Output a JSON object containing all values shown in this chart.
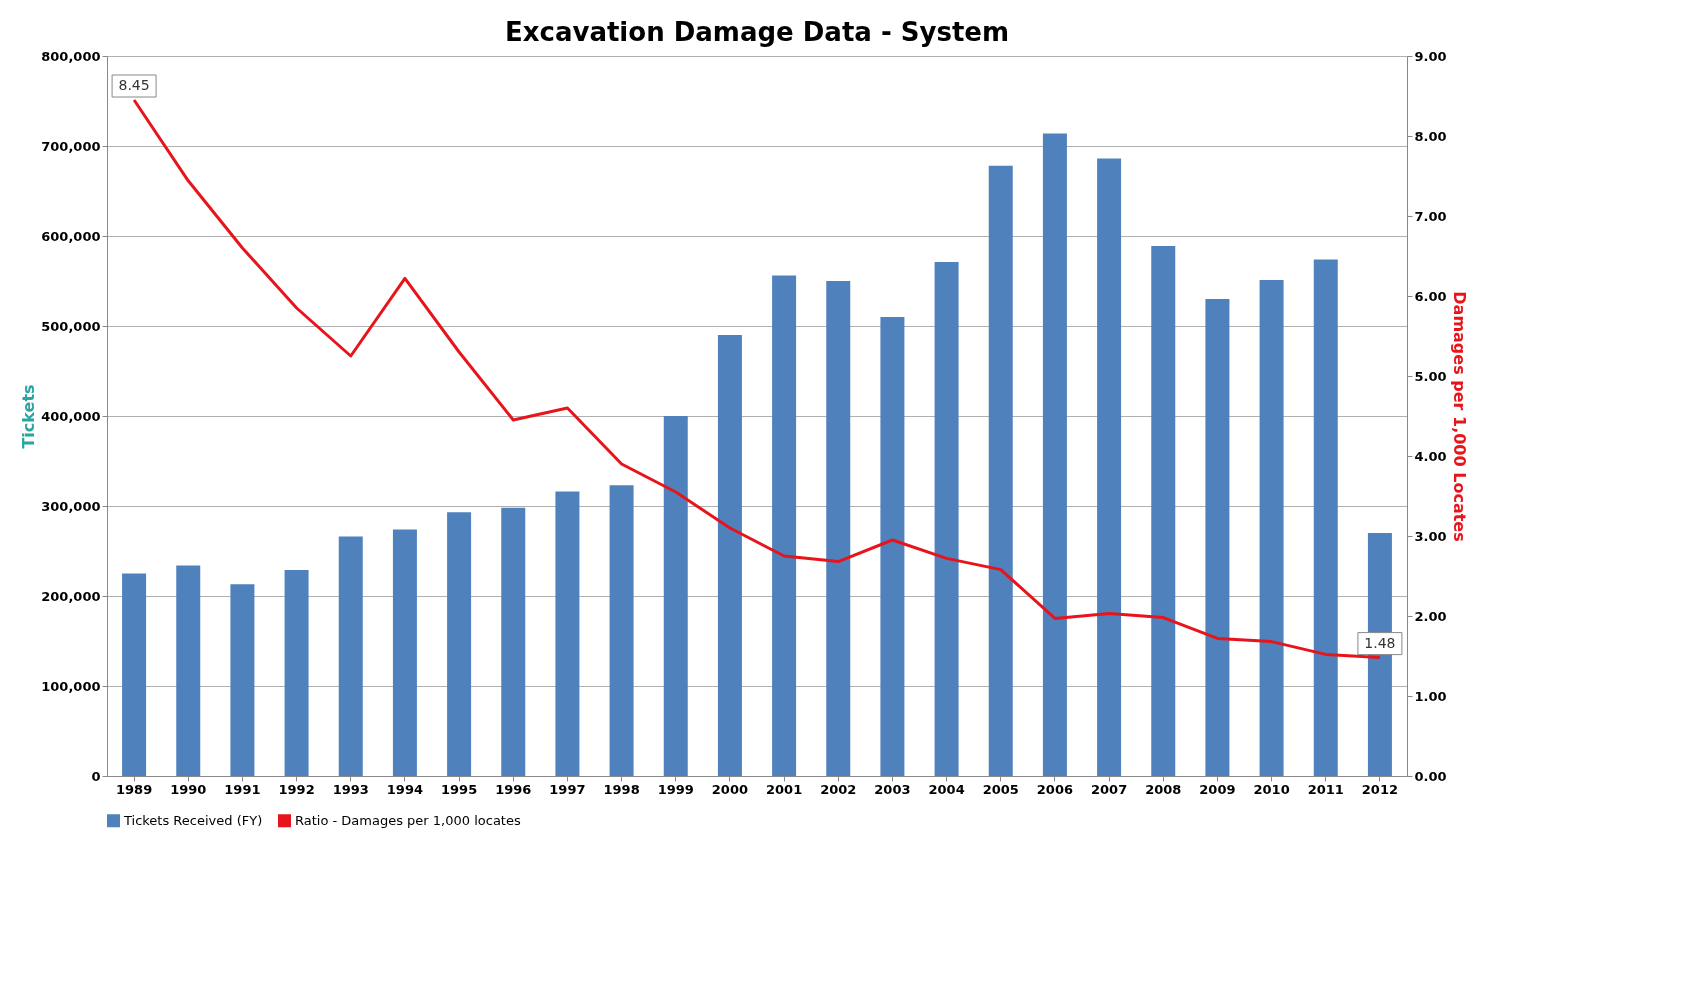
{
  "chart_data": {
    "type": "bar",
    "title": "Excavation Damage Data - System",
    "ylabel": "Tickets",
    "y2label": "Damages per 1,000 Locates",
    "categories": [
      "1989",
      "1990",
      "1991",
      "1992",
      "1993",
      "1994",
      "1995",
      "1996",
      "1997",
      "1998",
      "1999",
      "2000",
      "2001",
      "2002",
      "2003",
      "2004",
      "2005",
      "2006",
      "2007",
      "2008",
      "2009",
      "2010",
      "2011",
      "2012"
    ],
    "series": [
      {
        "name": "Tickets Received (FY)",
        "color": "#4f81bd",
        "values": [
          225000,
          234000,
          213000,
          229000,
          266000,
          274000,
          293000,
          298000,
          316000,
          323000,
          400000,
          490000,
          556000,
          550000,
          510000,
          571000,
          678000,
          714000,
          686000,
          589000,
          530000,
          551000,
          574000,
          270000
        ]
      },
      {
        "name": "Ratio - Damages per 1,000 locates",
        "type": "line",
        "axis": "y2",
        "color": "#e8141b",
        "values": [
          8.45,
          7.44,
          6.6,
          5.85,
          5.25,
          6.22,
          5.3,
          4.45,
          4.6,
          3.9,
          3.55,
          3.1,
          2.75,
          2.68,
          2.95,
          2.72,
          2.58,
          1.97,
          2.03,
          1.98,
          1.72,
          1.68,
          1.52,
          1.48
        ],
        "value_labels": [
          "8.45",
          null,
          null,
          null,
          null,
          null,
          null,
          null,
          null,
          null,
          null,
          null,
          null,
          null,
          null,
          null,
          null,
          null,
          null,
          null,
          null,
          null,
          null,
          "1.48"
        ]
      }
    ],
    "ylim": [
      0,
      800000
    ],
    "yticks": [
      {
        "value": 0,
        "label": "0"
      },
      {
        "value": 100000,
        "label": "100,000"
      },
      {
        "value": 200000,
        "label": "200,000"
      },
      {
        "value": 300000,
        "label": "300,000"
      },
      {
        "value": 400000,
        "label": "400,000"
      },
      {
        "value": 500000,
        "label": "500,000"
      },
      {
        "value": 600000,
        "label": "600,000"
      },
      {
        "value": 700000,
        "label": "700,000"
      },
      {
        "value": 800000,
        "label": "800,000"
      }
    ],
    "y2lim": [
      0,
      9
    ],
    "y2ticks": [
      {
        "value": 0,
        "label": "0.00"
      },
      {
        "value": 1,
        "label": "1.00"
      },
      {
        "value": 2,
        "label": "2.00"
      },
      {
        "value": 3,
        "label": "3.00"
      },
      {
        "value": 4,
        "label": "4.00"
      },
      {
        "value": 5,
        "label": "5.00"
      },
      {
        "value": 6,
        "label": "6.00"
      },
      {
        "value": 7,
        "label": "7.00"
      },
      {
        "value": 8,
        "label": "8.00"
      },
      {
        "value": 9,
        "label": "9.00"
      }
    ],
    "grid": "y",
    "legend": "bottom"
  }
}
